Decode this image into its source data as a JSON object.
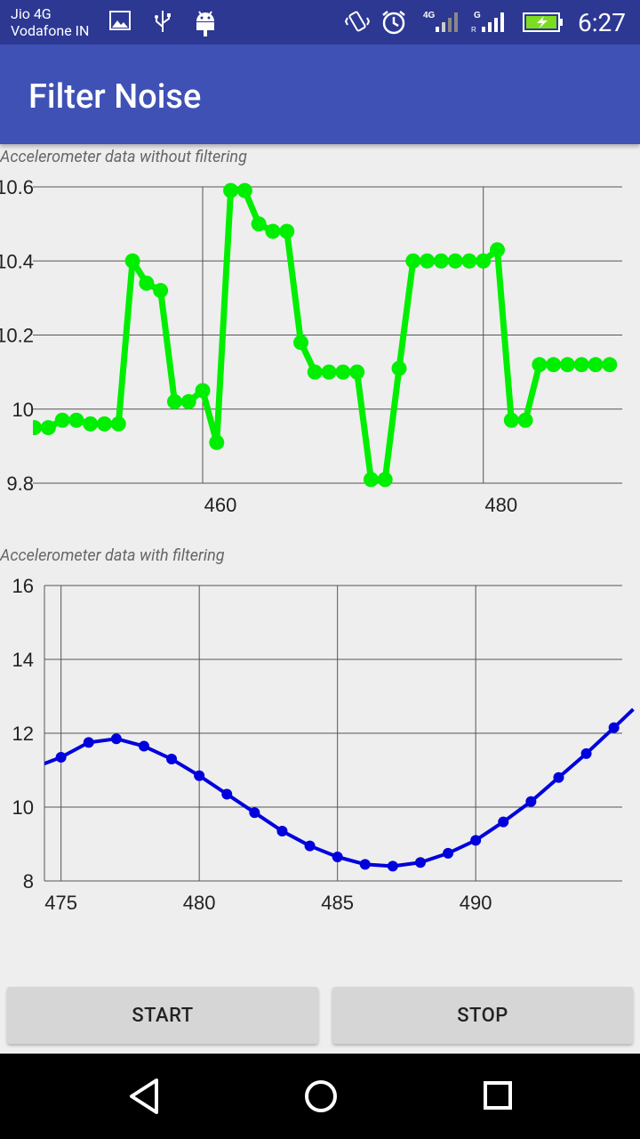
{
  "status_bar": {
    "carrier_line1": "Jio 4G",
    "carrier_line2": "Vodafone IN",
    "time": "6:27",
    "icons": [
      "image-icon",
      "usb-icon",
      "android-icon",
      "vibrate-icon",
      "alarm-icon",
      "signal-4g-icon",
      "signal-g-icon",
      "battery-charging-icon"
    ]
  },
  "app_bar": {
    "title": "Filter Noise"
  },
  "colors": {
    "appbar": "#3f51b5",
    "statusbar": "#2c3892",
    "raw_series": "#00ee00",
    "filtered_series": "#0000dd"
  },
  "charts": {
    "raw": {
      "caption": "Accelerometer data without filtering",
      "y_ticks": [
        "10.6",
        "10.4",
        "10.2",
        "10",
        "9.8"
      ],
      "x_ticks": [
        "460",
        "480"
      ]
    },
    "filtered": {
      "caption": "Accelerometer data with filtering",
      "y_ticks": [
        "16",
        "14",
        "12",
        "10",
        "8"
      ],
      "x_ticks": [
        "475",
        "480",
        "485",
        "490"
      ]
    }
  },
  "chart_data": [
    {
      "type": "line",
      "xlabel": "",
      "ylabel": "",
      "xlim": [
        447.9,
        489.9
      ],
      "ylim": [
        9.8,
        10.6
      ],
      "grid": true,
      "series": [
        {
          "color": "#00ee00",
          "x": [
            448,
            449,
            450,
            451,
            452,
            453,
            454,
            455,
            456,
            457,
            458,
            459,
            460,
            461,
            462,
            463,
            464,
            465,
            466,
            467,
            468,
            469,
            470,
            471,
            472,
            473,
            474,
            475,
            476,
            477,
            478,
            479,
            480,
            481,
            482,
            483,
            484,
            485,
            486,
            487,
            488,
            489
          ],
          "y": [
            9.95,
            9.95,
            9.97,
            9.97,
            9.96,
            9.96,
            9.96,
            10.4,
            10.34,
            10.32,
            10.02,
            10.02,
            10.05,
            9.91,
            10.59,
            10.59,
            10.5,
            10.48,
            10.48,
            10.18,
            10.1,
            10.1,
            10.1,
            10.1,
            9.81,
            9.81,
            10.11,
            10.4,
            10.4,
            10.4,
            10.4,
            10.4,
            10.4,
            10.43,
            9.97,
            9.97,
            10.12,
            10.12,
            10.12,
            10.12,
            10.12,
            10.12
          ]
        }
      ]
    },
    {
      "type": "line",
      "xlabel": "",
      "ylabel": "",
      "xlim": [
        474.4,
        495.3
      ],
      "ylim": [
        8,
        16
      ],
      "grid": true,
      "series": [
        {
          "color": "#0000dd",
          "x": [
            474.3,
            475,
            476,
            477,
            478,
            479,
            480,
            481,
            482,
            483,
            484,
            485,
            486,
            487,
            488,
            489,
            490,
            491,
            492,
            493,
            494,
            495,
            495.7
          ],
          "y": [
            11.15,
            11.35,
            11.75,
            11.85,
            11.65,
            11.3,
            10.85,
            10.35,
            9.85,
            9.35,
            8.95,
            8.65,
            8.45,
            8.4,
            8.5,
            8.75,
            9.1,
            9.6,
            10.15,
            10.8,
            11.45,
            12.15,
            12.65
          ]
        }
      ]
    }
  ],
  "buttons": {
    "start": "START",
    "stop": "STOP"
  },
  "nav_bar": {
    "icons": [
      "back-icon",
      "home-icon",
      "recents-icon"
    ]
  }
}
